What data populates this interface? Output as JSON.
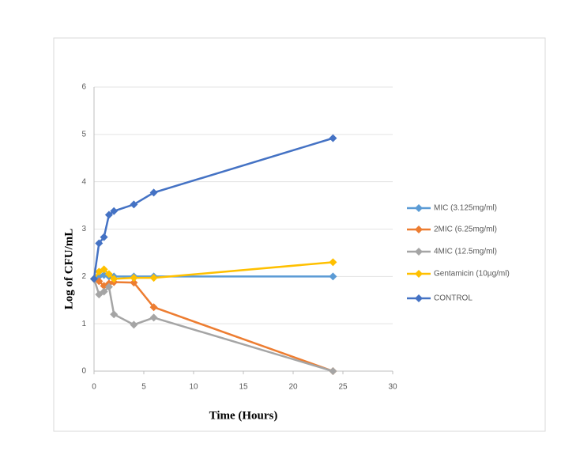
{
  "chart_data": {
    "type": "line",
    "x_label": "Time (Hours)",
    "y_label": "Log of CFU/mL",
    "x": [
      0,
      0.5,
      1,
      1.5,
      2,
      4,
      6,
      24
    ],
    "series": [
      {
        "name": "MIC (3.125mg/ml)",
        "color": "#5b9bd5",
        "values": [
          1.95,
          2.0,
          2.03,
          2.0,
          2.0,
          2.0,
          2.0,
          2.0
        ]
      },
      {
        "name": "2MIC (6.25mg/ml)",
        "color": "#ed7d31",
        "values": [
          1.95,
          1.9,
          1.8,
          1.85,
          1.88,
          1.87,
          1.35,
          0
        ]
      },
      {
        "name": "4MIC (12.5mg/ml)",
        "color": "#a5a5a5",
        "values": [
          1.95,
          1.62,
          1.68,
          1.78,
          1.2,
          0.98,
          1.13,
          0
        ]
      },
      {
        "name": "Gentamicin (10µg/ml)",
        "color": "#ffc000",
        "values": [
          1.95,
          2.1,
          2.15,
          2.05,
          1.95,
          1.97,
          1.97,
          2.3
        ]
      },
      {
        "name": "CONTROL",
        "color": "#4472c4",
        "values": [
          1.95,
          2.7,
          2.83,
          3.3,
          3.38,
          3.52,
          3.77,
          4.92
        ]
      }
    ],
    "xlim": [
      0,
      30
    ],
    "xticks": [
      0,
      5,
      10,
      15,
      20,
      25,
      30
    ],
    "ylim": [
      0,
      6
    ],
    "yticks": [
      0,
      1,
      2,
      3,
      4,
      5,
      6
    ],
    "grid": true,
    "legend": "right"
  }
}
